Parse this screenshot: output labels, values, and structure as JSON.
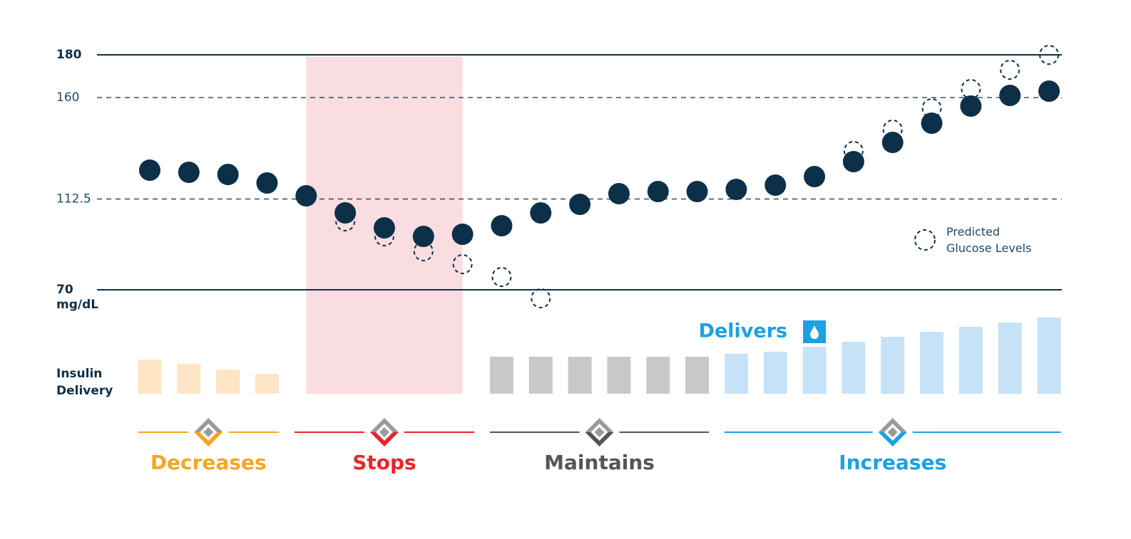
{
  "chart_data": [
    {
      "type": "dot",
      "ylim": [
        60,
        180
      ],
      "yticks": [
        180,
        160,
        112.5,
        70
      ],
      "tick_line_styles": [
        "solid",
        "dashed",
        "dashed",
        "solid"
      ],
      "y_unit": "mg/dL",
      "series": [
        {
          "style": "filled",
          "color": "#0d3049",
          "values": [
            126,
            125,
            124,
            120,
            114,
            106,
            99,
            95,
            96,
            100,
            106,
            110,
            115,
            116,
            116,
            117,
            119,
            123,
            130,
            139,
            148,
            156,
            161,
            163
          ]
        },
        {
          "name": "Predicted Glucose Levels",
          "style": "dashed",
          "color": "#0d3049",
          "values": [
            null,
            null,
            null,
            null,
            null,
            102,
            95,
            88,
            82,
            76,
            66,
            null,
            null,
            null,
            null,
            null,
            null,
            null,
            135,
            145,
            155,
            164,
            173,
            180
          ]
        }
      ]
    },
    {
      "type": "bar",
      "title": "Insulin Delivery",
      "ylim": [
        0,
        110
      ],
      "phases": [
        {
          "label": "Decreases",
          "color": "#f5a623",
          "bar_color": "#fde5c6",
          "values": [
            48,
            42,
            34,
            28
          ]
        },
        {
          "label": "Stops",
          "color": "#e8262b",
          "bar_color": "#f9dde0",
          "shade": "#f9dde0",
          "values": [
            0,
            0,
            0,
            0,
            0
          ]
        },
        {
          "label": "Maintains",
          "color": "#555555",
          "bar_color": "#c8c8c8",
          "values": [
            52,
            52,
            52,
            52,
            52,
            52
          ]
        },
        {
          "label": "Increases",
          "color": "#1ba1e2",
          "bar_color": "#c6e2f7",
          "annotation": "Delivers",
          "values": [
            56,
            59,
            66,
            73,
            80,
            87,
            94,
            100,
            107
          ]
        }
      ]
    }
  ]
}
